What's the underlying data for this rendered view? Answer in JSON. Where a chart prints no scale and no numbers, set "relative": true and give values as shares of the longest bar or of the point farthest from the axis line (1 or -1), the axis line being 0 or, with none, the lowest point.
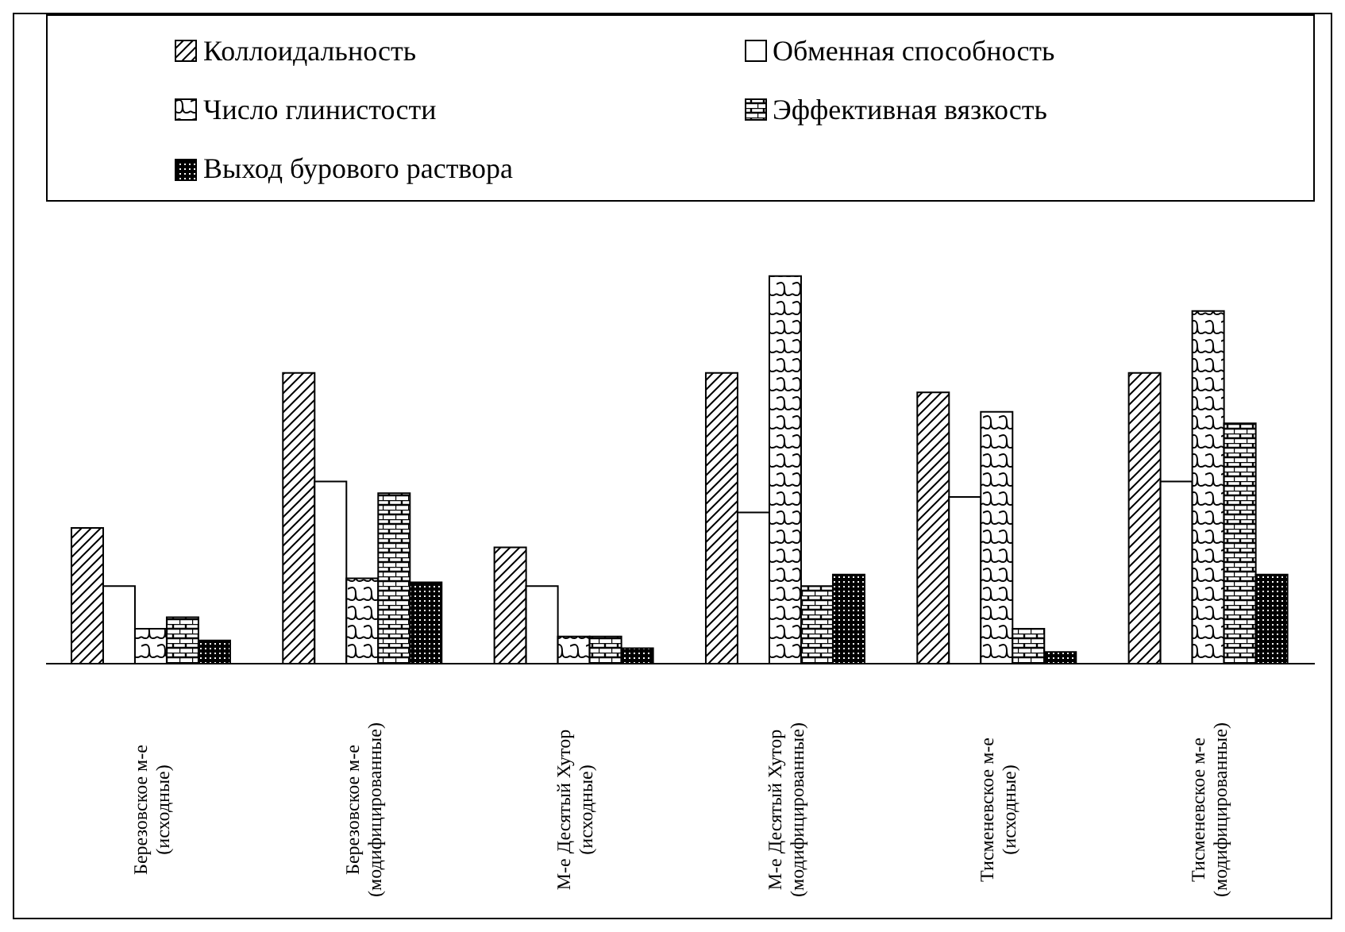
{
  "chart_data": {
    "type": "bar",
    "relative": true,
    "legend": "top",
    "categories": [
      "Березовское м-е (исходные)",
      "Березовское м-е (модифицированные)",
      "М-е Десятый Хутор (исходные)",
      "М-е Десятый Хутор (модифицированные)",
      "Тисменевское м-е (исходные)",
      "Тисменевское м-е (модифицированные)"
    ],
    "series": [
      {
        "name": "Коллоидальность",
        "color": "#000000",
        "values": [
          0.35,
          0.75,
          0.3,
          0.75,
          0.7,
          0.75
        ]
      },
      {
        "name": "Обменная способность",
        "color": "#ffffff",
        "values": [
          0.2,
          0.47,
          0.2,
          0.39,
          0.43,
          0.47
        ]
      },
      {
        "name": "Число глинистости",
        "color": "#000000",
        "values": [
          0.09,
          0.22,
          0.07,
          1,
          0.65,
          0.91
        ]
      },
      {
        "name": "Эффективная вязкость",
        "color": "#000000",
        "values": [
          0.12,
          0.44,
          0.07,
          0.2,
          0.09,
          0.62
        ]
      },
      {
        "name": "Выход бурового раствора",
        "color": "#000000",
        "values": [
          0.06,
          0.21,
          0.04,
          0.23,
          0.03,
          0.23
        ]
      }
    ]
  }
}
